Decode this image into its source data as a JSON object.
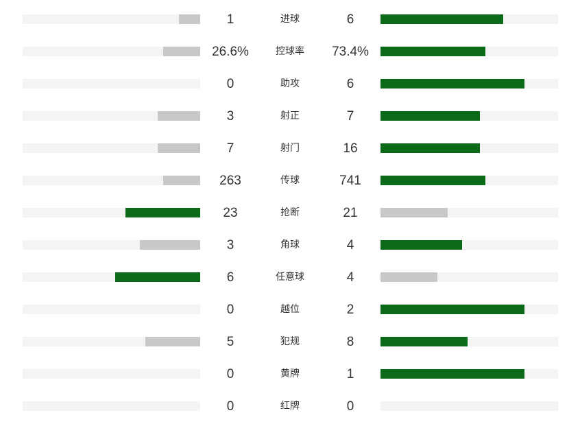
{
  "colors": {
    "leader": "#0a6a17",
    "trailer": "#c8c8c8",
    "track": "#f4f4f4",
    "text": "#333333"
  },
  "stats": [
    {
      "label": "进球",
      "home": "1",
      "away": "6",
      "home_share": 0.12,
      "away_share": 0.69,
      "home_leads": false,
      "away_leads": true
    },
    {
      "label": "控球率",
      "home": "26.6%",
      "away": "73.4%",
      "home_share": 0.21,
      "away_share": 0.59,
      "home_leads": false,
      "away_leads": true
    },
    {
      "label": "助攻",
      "home": "0",
      "away": "6",
      "home_share": 0,
      "away_share": 0.81,
      "home_leads": false,
      "away_leads": true
    },
    {
      "label": "射正",
      "home": "3",
      "away": "7",
      "home_share": 0.24,
      "away_share": 0.56,
      "home_leads": false,
      "away_leads": true
    },
    {
      "label": "射门",
      "home": "7",
      "away": "16",
      "home_share": 0.24,
      "away_share": 0.56,
      "home_leads": false,
      "away_leads": true
    },
    {
      "label": "传球",
      "home": "263",
      "away": "741",
      "home_share": 0.21,
      "away_share": 0.59,
      "home_leads": false,
      "away_leads": true
    },
    {
      "label": "抢断",
      "home": "23",
      "away": "21",
      "home_share": 0.42,
      "away_share": 0.38,
      "home_leads": true,
      "away_leads": false
    },
    {
      "label": "角球",
      "home": "3",
      "away": "4",
      "home_share": 0.34,
      "away_share": 0.46,
      "home_leads": false,
      "away_leads": true
    },
    {
      "label": "任意球",
      "home": "6",
      "away": "4",
      "home_share": 0.48,
      "away_share": 0.32,
      "home_leads": true,
      "away_leads": false
    },
    {
      "label": "越位",
      "home": "0",
      "away": "2",
      "home_share": 0,
      "away_share": 0.81,
      "home_leads": false,
      "away_leads": true
    },
    {
      "label": "犯规",
      "home": "5",
      "away": "8",
      "home_share": 0.31,
      "away_share": 0.49,
      "home_leads": false,
      "away_leads": true
    },
    {
      "label": "黄牌",
      "home": "0",
      "away": "1",
      "home_share": 0,
      "away_share": 0.81,
      "home_leads": false,
      "away_leads": true
    },
    {
      "label": "红牌",
      "home": "0",
      "away": "0",
      "home_share": 0,
      "away_share": 0,
      "home_leads": false,
      "away_leads": false
    }
  ]
}
